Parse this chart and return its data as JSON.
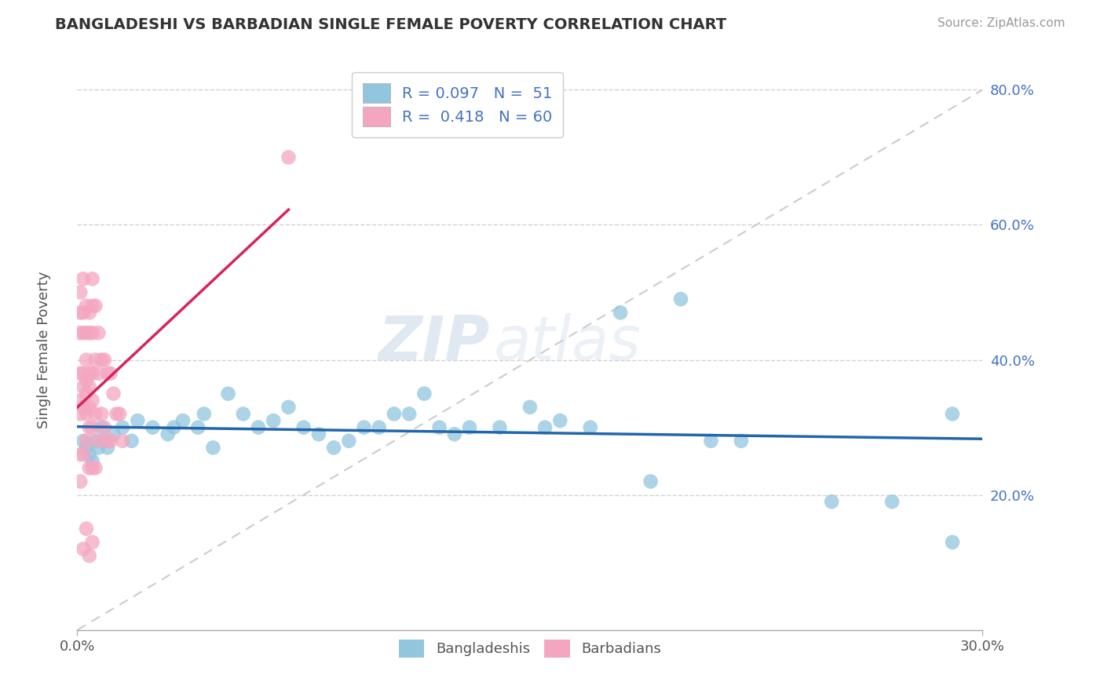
{
  "title": "BANGLADESHI VS BARBADIAN SINGLE FEMALE POVERTY CORRELATION CHART",
  "source": "Source: ZipAtlas.com",
  "ylabel": "Single Female Poverty",
  "xlabel_bangladeshi": "Bangladeshis",
  "xlabel_barbadian": "Barbadians",
  "legend_R_bangladeshi": "0.097",
  "legend_N_bangladeshi": "51",
  "legend_R_barbadian": "0.418",
  "legend_N_barbadian": "60",
  "xlim": [
    0.0,
    0.3
  ],
  "ylim": [
    0.0,
    0.85
  ],
  "color_bangladeshi": "#92c5de",
  "color_bangladeshi_line": "#2166ac",
  "color_barbadian": "#f4a6c0",
  "color_barbadian_line": "#d6245a",
  "color_ref_line": "#cccccc",
  "watermark_zip": "ZIP",
  "watermark_atlas": "atlas",
  "bangladeshi_x": [
    0.002,
    0.003,
    0.004,
    0.005,
    0.006,
    0.007,
    0.008,
    0.009,
    0.01,
    0.012,
    0.015,
    0.018,
    0.02,
    0.025,
    0.03,
    0.032,
    0.035,
    0.04,
    0.042,
    0.045,
    0.05,
    0.055,
    0.06,
    0.065,
    0.07,
    0.075,
    0.08,
    0.085,
    0.09,
    0.095,
    0.1,
    0.105,
    0.11,
    0.115,
    0.12,
    0.125,
    0.13,
    0.14,
    0.15,
    0.155,
    0.16,
    0.17,
    0.18,
    0.19,
    0.2,
    0.21,
    0.22,
    0.25,
    0.27,
    0.29,
    0.29
  ],
  "bangladeshi_y": [
    0.28,
    0.27,
    0.26,
    0.25,
    0.28,
    0.27,
    0.3,
    0.28,
    0.27,
    0.29,
    0.3,
    0.28,
    0.31,
    0.3,
    0.29,
    0.3,
    0.31,
    0.3,
    0.32,
    0.27,
    0.35,
    0.32,
    0.3,
    0.31,
    0.33,
    0.3,
    0.29,
    0.27,
    0.28,
    0.3,
    0.3,
    0.32,
    0.32,
    0.35,
    0.3,
    0.29,
    0.3,
    0.3,
    0.33,
    0.3,
    0.31,
    0.3,
    0.47,
    0.22,
    0.49,
    0.28,
    0.28,
    0.19,
    0.19,
    0.13,
    0.32
  ],
  "barbadian_x": [
    0.001,
    0.001,
    0.001,
    0.001,
    0.001,
    0.001,
    0.001,
    0.001,
    0.002,
    0.002,
    0.002,
    0.002,
    0.002,
    0.002,
    0.002,
    0.002,
    0.003,
    0.003,
    0.003,
    0.003,
    0.003,
    0.003,
    0.003,
    0.003,
    0.004,
    0.004,
    0.004,
    0.004,
    0.004,
    0.004,
    0.004,
    0.004,
    0.005,
    0.005,
    0.005,
    0.005,
    0.005,
    0.005,
    0.005,
    0.005,
    0.006,
    0.006,
    0.006,
    0.006,
    0.007,
    0.007,
    0.007,
    0.008,
    0.008,
    0.009,
    0.009,
    0.01,
    0.01,
    0.011,
    0.011,
    0.012,
    0.013,
    0.014,
    0.015,
    0.07
  ],
  "barbadian_y": [
    0.5,
    0.47,
    0.44,
    0.38,
    0.34,
    0.32,
    0.26,
    0.22,
    0.52,
    0.47,
    0.44,
    0.38,
    0.36,
    0.33,
    0.26,
    0.12,
    0.48,
    0.44,
    0.4,
    0.37,
    0.35,
    0.32,
    0.28,
    0.15,
    0.47,
    0.44,
    0.38,
    0.36,
    0.33,
    0.3,
    0.24,
    0.11,
    0.52,
    0.48,
    0.44,
    0.38,
    0.34,
    0.3,
    0.24,
    0.13,
    0.48,
    0.4,
    0.32,
    0.24,
    0.44,
    0.38,
    0.28,
    0.4,
    0.32,
    0.4,
    0.3,
    0.38,
    0.28,
    0.38,
    0.28,
    0.35,
    0.32,
    0.32,
    0.28,
    0.7
  ]
}
